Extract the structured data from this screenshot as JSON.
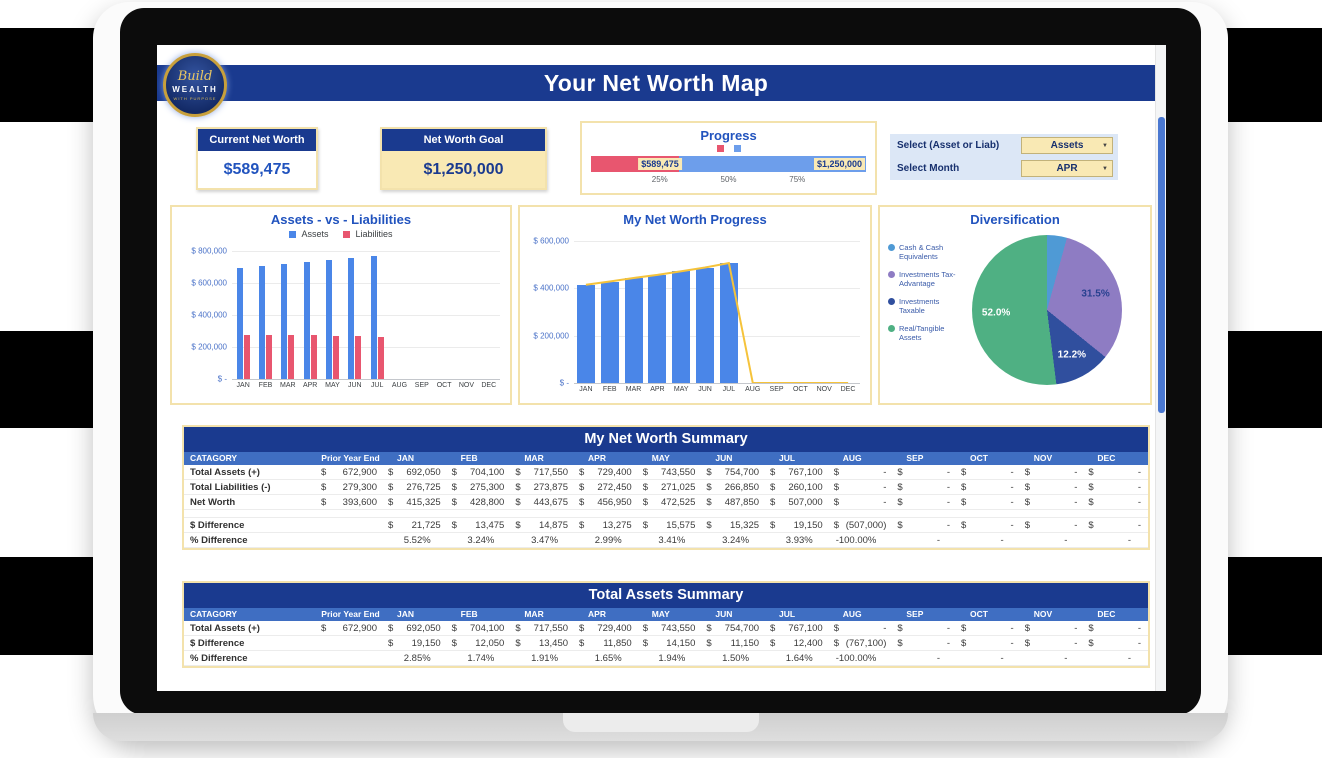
{
  "header": {
    "title": "Your Net Worth Map"
  },
  "logo": {
    "script": "Build",
    "name": "WEALTH",
    "tagline": "WITH PURPOSE"
  },
  "cards": {
    "current": {
      "label": "Current Net Worth",
      "value": "$589,475"
    },
    "goal": {
      "label": "Net Worth Goal",
      "value": "$1,250,000"
    }
  },
  "progress": {
    "title": "Progress",
    "current_value": 589475,
    "goal_value": 1250000,
    "current_label": "$589,475",
    "goal_label": "$1,250,000",
    "ticks": [
      "25%",
      "50%",
      "75%"
    ]
  },
  "selectors": {
    "asset_liab": {
      "label": "Select (Asset or Liab)",
      "value": "Assets"
    },
    "month": {
      "label": "Select Month",
      "value": "APR"
    }
  },
  "colors": {
    "navy": "#1a3a8f",
    "header_row_blue": "#3f6ec2",
    "value_blue": "#2153be",
    "cream": "#f9e9b4",
    "cream_border": "#f3e2ac",
    "bar_blue": "#4a86e8",
    "bar_red": "#e8566f",
    "progress_blue": "#6d9eeb",
    "line_yellow": "#f5c33b"
  },
  "chart_data": [
    {
      "type": "bar",
      "title": "Assets - vs - Liabilities",
      "categories": [
        "JAN",
        "FEB",
        "MAR",
        "APR",
        "MAY",
        "JUN",
        "JUL",
        "AUG",
        "SEP",
        "OCT",
        "NOV",
        "DEC"
      ],
      "series": [
        {
          "name": "Assets",
          "color": "#4a86e8",
          "values": [
            692050,
            704100,
            717550,
            729400,
            743550,
            754700,
            767100,
            0,
            0,
            0,
            0,
            0
          ]
        },
        {
          "name": "Liabilities",
          "color": "#e8566f",
          "values": [
            276725,
            275300,
            273875,
            272450,
            271025,
            266850,
            260100,
            0,
            0,
            0,
            0,
            0
          ]
        }
      ],
      "y_ticks": [
        "$ 800,000",
        "$ 600,000",
        "$ 400,000",
        "$ 200,000",
        "$ -"
      ],
      "ymax": 800000,
      "legend_position": "top",
      "grid": true
    },
    {
      "type": "bar+line",
      "title": "My Net Worth Progress",
      "categories": [
        "JAN",
        "FEB",
        "MAR",
        "APR",
        "MAY",
        "JUN",
        "JUL",
        "AUG",
        "SEP",
        "OCT",
        "NOV",
        "DEC"
      ],
      "bar_color": "#4a86e8",
      "bar_values": [
        415325,
        428800,
        443675,
        456950,
        472525,
        487850,
        507000,
        0,
        0,
        0,
        0,
        0
      ],
      "line_color": "#f5c33b",
      "line_values": [
        415325,
        428800,
        443675,
        456950,
        472525,
        487850,
        507000,
        0,
        0,
        0,
        0,
        0
      ],
      "y_ticks": [
        "$ 600,000",
        "$ 400,000",
        "$ 200,000",
        "$ -"
      ],
      "ymax": 600000,
      "grid": true
    },
    {
      "type": "pie",
      "title": "Diversification",
      "slices": [
        {
          "label": "Cash & Cash Equivalents",
          "pct": 4.3,
          "color": "#4f9ad5",
          "display": "",
          "label_color": "#ffffff"
        },
        {
          "label": "Investments Tax-Advantage",
          "pct": 31.5,
          "color": "#8e7cc3",
          "display": "31.5%",
          "label_color": "#27408f"
        },
        {
          "label": "Investments Taxable",
          "pct": 12.2,
          "color": "#304f9e",
          "display": "12.2%",
          "label_color": "#ffffff"
        },
        {
          "label": "Real/Tangible Assets",
          "pct": 52.0,
          "color": "#4fb083",
          "display": "52.0%",
          "label_color": "#ffffff"
        }
      ],
      "legend_position": "left"
    }
  ],
  "summary_table": {
    "title": "My Net Worth Summary",
    "columns": [
      "CATAGORY",
      "Prior Year End",
      "JAN",
      "FEB",
      "MAR",
      "APR",
      "MAY",
      "JUN",
      "JUL",
      "AUG",
      "SEP",
      "OCT",
      "NOV",
      "DEC"
    ],
    "rows": [
      {
        "label": "Total Assets (+)",
        "format": "money",
        "prior": "672,900",
        "values": [
          "692,050",
          "704,100",
          "717,550",
          "729,400",
          "743,550",
          "754,700",
          "767,100",
          "-",
          "-",
          "-",
          "-",
          "-"
        ]
      },
      {
        "label": "Total Liabilities (-)",
        "format": "money",
        "prior": "279,300",
        "values": [
          "276,725",
          "275,300",
          "273,875",
          "272,450",
          "271,025",
          "266,850",
          "260,100",
          "-",
          "-",
          "-",
          "-",
          "-"
        ]
      },
      {
        "label": "Net Worth",
        "format": "money",
        "prior": "393,600",
        "values": [
          "415,325",
          "428,800",
          "443,675",
          "456,950",
          "472,525",
          "487,850",
          "507,000",
          "-",
          "-",
          "-",
          "-",
          "-"
        ]
      },
      {
        "spacer": true
      },
      {
        "label": "$ Difference",
        "format": "money",
        "prior": "",
        "values": [
          "21,725",
          "13,475",
          "14,875",
          "13,275",
          "15,575",
          "15,325",
          "19,150",
          "(507,000)",
          "-",
          "-",
          "-",
          "-"
        ]
      },
      {
        "label": "% Difference",
        "format": "percent",
        "prior": "",
        "values": [
          "5.52%",
          "3.24%",
          "3.47%",
          "2.99%",
          "3.41%",
          "3.24%",
          "3.93%",
          "-100.00%",
          "-",
          "-",
          "-",
          "-"
        ]
      }
    ]
  },
  "assets_table": {
    "title": "Total Assets Summary",
    "columns": [
      "CATAGORY",
      "Prior Year End",
      "JAN",
      "FEB",
      "MAR",
      "APR",
      "MAY",
      "JUN",
      "JUL",
      "AUG",
      "SEP",
      "OCT",
      "NOV",
      "DEC"
    ],
    "rows": [
      {
        "label": "Total Assets (+)",
        "format": "money",
        "prior": "672,900",
        "values": [
          "692,050",
          "704,100",
          "717,550",
          "729,400",
          "743,550",
          "754,700",
          "767,100",
          "-",
          "-",
          "-",
          "-",
          "-"
        ]
      },
      {
        "label": "$ Difference",
        "format": "money",
        "prior": "",
        "values": [
          "19,150",
          "12,050",
          "13,450",
          "11,850",
          "14,150",
          "11,150",
          "12,400",
          "(767,100)",
          "-",
          "-",
          "-",
          "-"
        ]
      },
      {
        "label": "% Difference",
        "format": "percent",
        "prior": "",
        "values": [
          "2.85%",
          "1.74%",
          "1.91%",
          "1.65%",
          "1.94%",
          "1.50%",
          "1.64%",
          "-100.00%",
          "-",
          "-",
          "-",
          "-"
        ]
      }
    ]
  }
}
